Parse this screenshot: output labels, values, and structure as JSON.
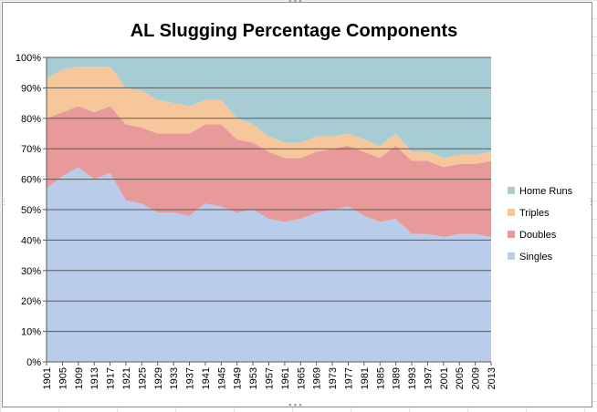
{
  "chart_data": {
    "type": "area",
    "title": "AL Slugging Percentage Components",
    "stacked": "100%",
    "xlabel": "",
    "ylabel": "",
    "ylim": [
      0,
      100
    ],
    "yticks": [
      "0%",
      "10%",
      "20%",
      "30%",
      "40%",
      "50%",
      "60%",
      "70%",
      "80%",
      "90%",
      "100%"
    ],
    "xticks": [
      "1901",
      "1905",
      "1909",
      "1913",
      "1917",
      "1921",
      "1925",
      "1929",
      "1933",
      "1937",
      "1941",
      "1945",
      "1949",
      "1953",
      "1957",
      "1961",
      "1965",
      "1969",
      "1973",
      "1977",
      "1981",
      "1985",
      "1989",
      "1993",
      "1997",
      "2001",
      "2005",
      "2009",
      "2013"
    ],
    "grid": "horizontal",
    "legend": "right",
    "x": [
      1901,
      1905,
      1909,
      1913,
      1917,
      1921,
      1925,
      1929,
      1933,
      1937,
      1941,
      1945,
      1949,
      1953,
      1957,
      1961,
      1965,
      1969,
      1973,
      1977,
      1981,
      1985,
      1989,
      1993,
      1997,
      2001,
      2005,
      2009,
      2013
    ],
    "series": [
      {
        "name": "Singles",
        "color": "#b9cdeb",
        "values": [
          57,
          61,
          64,
          60,
          62,
          53,
          52,
          49,
          49,
          48,
          52,
          51,
          49,
          50,
          47,
          46,
          47,
          49,
          50,
          51,
          48,
          46,
          47,
          42,
          42,
          41,
          42,
          42,
          41
        ]
      },
      {
        "name": "Doubles",
        "color": "#e89a9a",
        "values": [
          23,
          21,
          20,
          22,
          22,
          25,
          25,
          26,
          26,
          27,
          26,
          27,
          24,
          22,
          22,
          21,
          20,
          20,
          20,
          20,
          21,
          21,
          24,
          24,
          24,
          23,
          23,
          23,
          25
        ]
      },
      {
        "name": "Triples",
        "color": "#f7c79c",
        "values": [
          13,
          14,
          13,
          15,
          13,
          12,
          12,
          11,
          10,
          9,
          8,
          8,
          7,
          6,
          5,
          5,
          5,
          5,
          4,
          4,
          4,
          4,
          4,
          3,
          3,
          3,
          3,
          3,
          3
        ]
      },
      {
        "name": "Home Runs",
        "color": "#a8ccd4",
        "values": [
          7,
          4,
          3,
          3,
          3,
          10,
          11,
          14,
          15,
          16,
          14,
          14,
          20,
          22,
          26,
          28,
          28,
          26,
          26,
          25,
          27,
          29,
          25,
          31,
          31,
          33,
          32,
          32,
          31
        ]
      }
    ]
  }
}
